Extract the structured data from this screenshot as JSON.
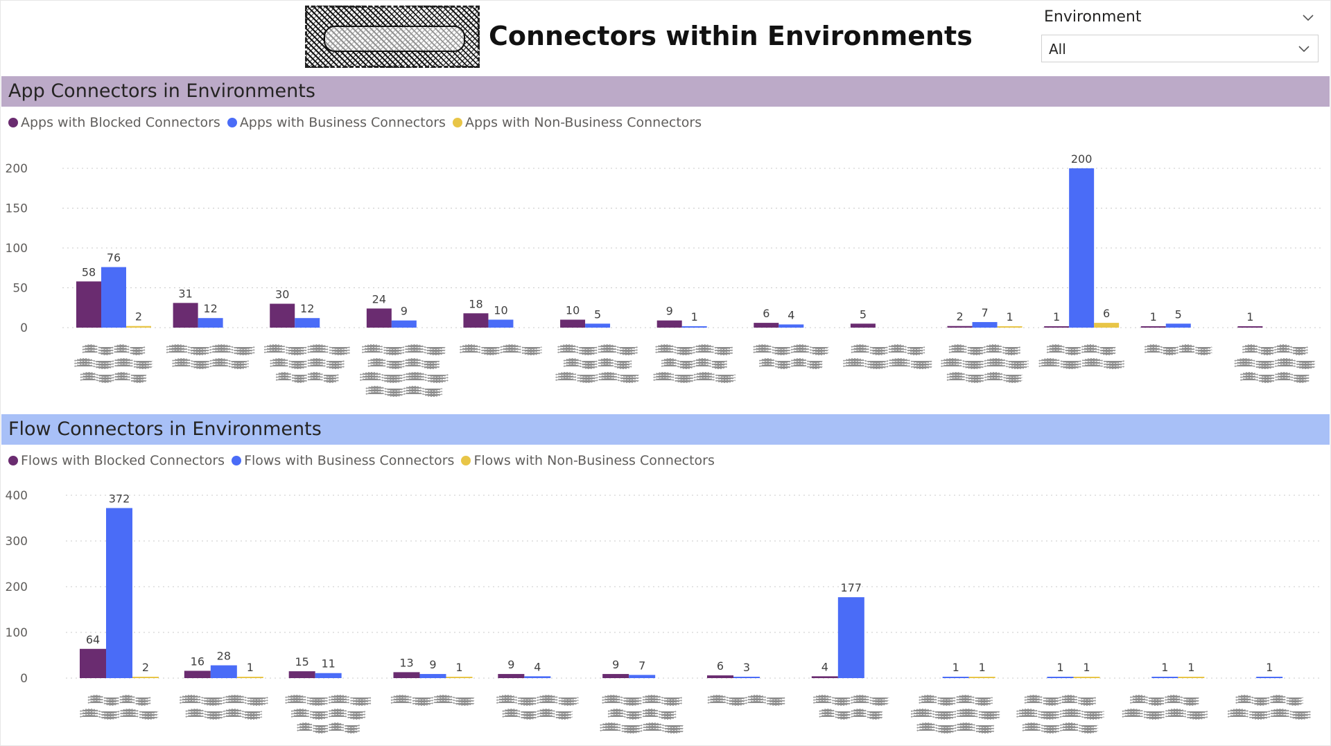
{
  "header": {
    "title": "Connectors within Environments",
    "logo_alt": "logo-scribble"
  },
  "slicer": {
    "label": "Environment",
    "selected": "All"
  },
  "colors": {
    "blocked": "#6a2c70",
    "business": "#4a6cf7",
    "nonbusiness": "#e8c547",
    "app_band": "#bcaac8",
    "flow_band": "#a8c0f7"
  },
  "app_section": {
    "title": "App Connectors in Environments",
    "legend": [
      "Apps with Blocked Connectors",
      "Apps with Business Connectors",
      "Apps with Non-Business Connectors"
    ]
  },
  "flow_section": {
    "title": "Flow Connectors in Environments",
    "legend": [
      "Flows with Blocked Connectors",
      "Flows with Business Connectors",
      "Flows with Non-Business Connectors"
    ]
  },
  "chart_data": [
    {
      "type": "bar",
      "title": "App Connectors in Environments",
      "categories": [
        "",
        "",
        "",
        "",
        "",
        "",
        "",
        "",
        "",
        "",
        "",
        "",
        ""
      ],
      "ylim": [
        0,
        200
      ],
      "yticks": [
        0,
        50,
        100,
        150,
        200
      ],
      "grid": true,
      "legend_position": "top-left",
      "series": [
        {
          "name": "Apps with Blocked Connectors",
          "color_key": "blocked",
          "values": [
            58,
            31,
            30,
            24,
            18,
            10,
            9,
            6,
            5,
            2,
            1,
            1,
            1
          ]
        },
        {
          "name": "Apps with Business Connectors",
          "color_key": "business",
          "values": [
            76,
            12,
            12,
            9,
            10,
            5,
            1,
            4,
            null,
            7,
            200,
            5,
            null
          ]
        },
        {
          "name": "Apps with Non-Business Connectors",
          "color_key": "nonbusiness",
          "values": [
            2,
            null,
            null,
            null,
            null,
            null,
            null,
            null,
            null,
            1,
            6,
            null,
            null
          ]
        }
      ]
    },
    {
      "type": "bar",
      "title": "Flow Connectors in Environments",
      "categories": [
        "",
        "",
        "",
        "",
        "",
        "",
        "",
        "",
        "",
        "",
        "",
        ""
      ],
      "ylim": [
        0,
        400
      ],
      "yticks": [
        0,
        100,
        200,
        300,
        400
      ],
      "grid": true,
      "legend_position": "top-left",
      "series": [
        {
          "name": "Flows with Blocked Connectors",
          "color_key": "blocked",
          "values": [
            64,
            16,
            15,
            13,
            9,
            9,
            6,
            4,
            null,
            null,
            null,
            null
          ]
        },
        {
          "name": "Flows with Business Connectors",
          "color_key": "business",
          "values": [
            372,
            28,
            11,
            9,
            4,
            7,
            3,
            177,
            1,
            1,
            1,
            1
          ]
        },
        {
          "name": "Flows with Non-Business Connectors",
          "color_key": "nonbusiness",
          "values": [
            2,
            1,
            null,
            1,
            null,
            null,
            null,
            null,
            1,
            1,
            1,
            null
          ]
        }
      ]
    }
  ]
}
